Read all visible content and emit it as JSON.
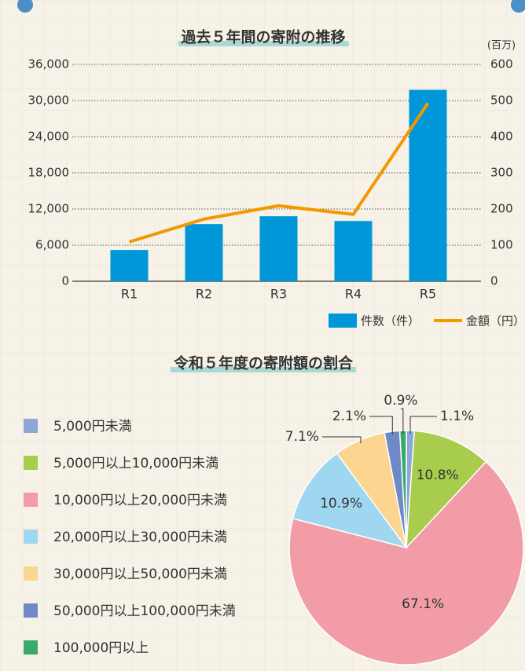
{
  "chart_data": [
    {
      "type": "bar_line",
      "title": "過去５年間の寄附の推移",
      "y2_label": "(百万)",
      "categories": [
        "R1",
        "R2",
        "R3",
        "R4",
        "R5"
      ],
      "series": [
        {
          "name": "件数（件）",
          "color": "#0097d9",
          "type": "bar",
          "values": [
            5200,
            9500,
            10800,
            10000,
            31800
          ]
        },
        {
          "name": "金額（円）",
          "color": "#f39800",
          "type": "line",
          "axis": "y2",
          "values": [
            109,
            172,
            209,
            185,
            493
          ]
        }
      ],
      "ylim": [
        0,
        36000
      ],
      "yticks": [
        0,
        {
          "value": 6000,
          "label": "6,000"
        },
        {
          "value": 12000,
          "label": "12,000"
        },
        {
          "value": 18000,
          "label": "18,000"
        },
        {
          "value": 24000,
          "label": "24,000"
        },
        {
          "value": 30000,
          "label": "30,000"
        },
        {
          "value": 36000,
          "label": "36,000"
        }
      ],
      "y2lim": [
        0,
        600
      ],
      "y2ticks": [
        0,
        100,
        200,
        300,
        400,
        500,
        600
      ],
      "grid": true
    },
    {
      "type": "pie",
      "title": "令和５年度の寄附額の割合",
      "categories": [
        "5,000円未満",
        "5,000円以上10,000円未満",
        "10,000円以上20,000円未満",
        "20,000円以上30,000円未満",
        "30,000円以上50,000円未満",
        "50,000円以上100,000円未満",
        "100,000円以上"
      ],
      "values": [
        1.1,
        10.8,
        67.1,
        10.9,
        7.1,
        2.1,
        0.9
      ],
      "value_labels": [
        "1.1%",
        "10.8%",
        "67.1%",
        "10.9%",
        "7.1%",
        "2.1%",
        "0.9%"
      ],
      "colors": [
        "#8fa6d8",
        "#a8cc4c",
        "#f19ca6",
        "#9fd6f0",
        "#fcd590",
        "#6f88c8",
        "#3aaa6a"
      ]
    }
  ]
}
